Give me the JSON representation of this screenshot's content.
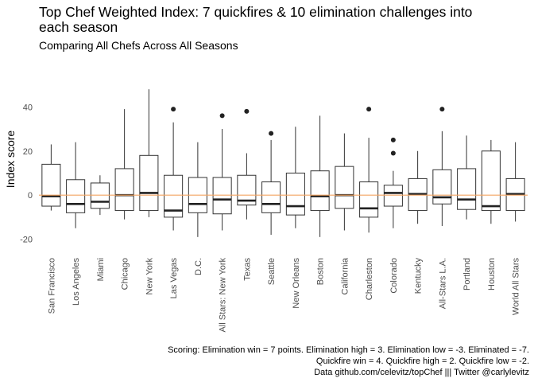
{
  "title": "Top Chef Weighted Index: 7 quickfires & 10 elimination challenges into each season",
  "subtitle": "Comparing All Chefs Across All Seasons",
  "caption": [
    "Scoring: Elimination win = 7 points. Elimination high = 3. Elimination low = -3. Eliminated = -7.",
    "Quickfire win = 4. Quickfire high = 2. Quickfire low = -2.",
    "Data github.com/celevitz/topChef ||| Twitter @carlylevitz"
  ],
  "colors": {
    "reference_line": "#f4a460",
    "box_stroke": "#333333",
    "median": "#222222",
    "outlier": "#222222",
    "tick_text": "#4d4d4d"
  },
  "chart_data": {
    "type": "boxplot",
    "xlabel": "",
    "ylabel": "Index score",
    "ylim": [
      -27,
      56
    ],
    "y_ticks": [
      -20,
      0,
      20,
      40
    ],
    "grid": false,
    "reference_line_y": 0,
    "categories": [
      "San Francisco",
      "Los Angeles",
      "Miami",
      "Chicago",
      "New York",
      "Las Vegas",
      "D.C.",
      "All Stars: New York",
      "Texas",
      "Seattle",
      "New Orleans",
      "Boston",
      "California",
      "Charleston",
      "Colorado",
      "Kentucky",
      "All-Stars L.A.",
      "Portland",
      "Houston",
      "World All Stars"
    ],
    "boxes": [
      {
        "min": -7,
        "q1": -5,
        "median": -0.5,
        "q3": 14,
        "max": 23,
        "outliers": []
      },
      {
        "min": -15,
        "q1": -8,
        "median": -4,
        "q3": 7,
        "max": 24,
        "outliers": []
      },
      {
        "min": -9,
        "q1": -6,
        "median": -3,
        "q3": 5.5,
        "max": 9,
        "outliers": []
      },
      {
        "min": -11,
        "q1": -7,
        "median": 0,
        "q3": 12,
        "max": 39,
        "outliers": []
      },
      {
        "min": -10,
        "q1": -7,
        "median": 1,
        "q3": 18,
        "max": 48,
        "outliers": []
      },
      {
        "min": -16,
        "q1": -10,
        "median": -7,
        "q3": 9,
        "max": 33,
        "outliers": [
          39
        ]
      },
      {
        "min": -19,
        "q1": -8,
        "median": -4,
        "q3": 8,
        "max": 24,
        "outliers": []
      },
      {
        "min": -16,
        "q1": -8.5,
        "median": -2,
        "q3": 8,
        "max": 30,
        "outliers": [
          36
        ]
      },
      {
        "min": -11,
        "q1": -4.5,
        "median": -2.5,
        "q3": 9,
        "max": 19,
        "outliers": [
          38
        ]
      },
      {
        "min": -18,
        "q1": -8,
        "median": -4,
        "q3": 6,
        "max": 25,
        "outliers": [
          28
        ]
      },
      {
        "min": -15,
        "q1": -9,
        "median": -5,
        "q3": 10,
        "max": 31,
        "outliers": []
      },
      {
        "min": -19,
        "q1": -7,
        "median": -0.5,
        "q3": 11,
        "max": 36,
        "outliers": []
      },
      {
        "min": -16,
        "q1": -6,
        "median": 0,
        "q3": 13,
        "max": 28,
        "outliers": []
      },
      {
        "min": -17,
        "q1": -10,
        "median": -6,
        "q3": 6,
        "max": 26,
        "outliers": [
          39
        ]
      },
      {
        "min": -15,
        "q1": -5,
        "median": 1,
        "q3": 4.5,
        "max": 11,
        "outliers": [
          25,
          19
        ]
      },
      {
        "min": -13,
        "q1": -7,
        "median": 0.5,
        "q3": 7.5,
        "max": 20,
        "outliers": []
      },
      {
        "min": -14,
        "q1": -4,
        "median": -1,
        "q3": 11.5,
        "max": 29,
        "outliers": [
          39
        ]
      },
      {
        "min": -11,
        "q1": -6.5,
        "median": -2,
        "q3": 12,
        "max": 27,
        "outliers": []
      },
      {
        "min": -13,
        "q1": -7,
        "median": -5,
        "q3": 20,
        "max": 25,
        "outliers": []
      },
      {
        "min": -12,
        "q1": -7,
        "median": 0.5,
        "q3": 7.5,
        "max": 24,
        "outliers": []
      }
    ]
  }
}
